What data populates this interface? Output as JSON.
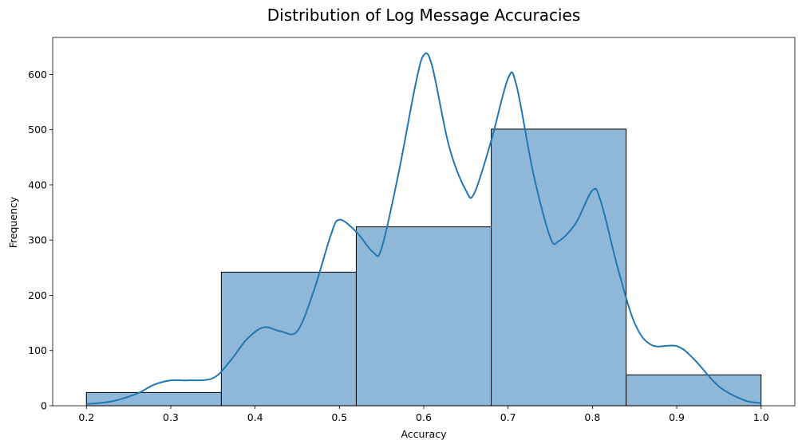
{
  "chart_data": {
    "type": "bar",
    "title": "Distribution of Log Message Accuracies",
    "xlabel": "Accuracy",
    "ylabel": "Frequency",
    "xlim": [
      0.16,
      1.04
    ],
    "ylim": [
      0,
      667
    ],
    "xticks": [
      "0.2",
      "0.3",
      "0.4",
      "0.5",
      "0.6",
      "0.7",
      "0.8",
      "0.9",
      "1.0"
    ],
    "xtick_values": [
      0.2,
      0.3,
      0.4,
      0.5,
      0.6,
      0.7,
      0.8,
      0.9,
      1.0
    ],
    "yticks": [
      "0",
      "100",
      "200",
      "300",
      "400",
      "500",
      "600"
    ],
    "ytick_values": [
      0,
      100,
      200,
      300,
      400,
      500,
      600
    ],
    "bins": [
      {
        "x0": 0.2,
        "x1": 0.36,
        "count": 24
      },
      {
        "x0": 0.36,
        "x1": 0.52,
        "count": 242
      },
      {
        "x0": 0.52,
        "x1": 0.68,
        "count": 324
      },
      {
        "x0": 0.68,
        "x1": 0.84,
        "count": 501
      },
      {
        "x0": 0.84,
        "x1": 1.0,
        "count": 56
      }
    ],
    "kde": {
      "x": [
        0.2,
        0.23,
        0.26,
        0.28,
        0.3,
        0.32,
        0.35,
        0.37,
        0.39,
        0.41,
        0.43,
        0.45,
        0.47,
        0.49,
        0.5,
        0.52,
        0.54,
        0.55,
        0.57,
        0.59,
        0.6,
        0.61,
        0.63,
        0.65,
        0.66,
        0.68,
        0.7,
        0.71,
        0.73,
        0.75,
        0.76,
        0.78,
        0.8,
        0.81,
        0.83,
        0.85,
        0.87,
        0.9,
        0.92,
        0.95,
        0.98,
        1.0
      ],
      "y": [
        3,
        8,
        22,
        38,
        46,
        46,
        50,
        80,
        120,
        142,
        135,
        135,
        210,
        310,
        337,
        315,
        278,
        285,
        420,
        580,
        635,
        615,
        470,
        390,
        385,
        480,
        593,
        580,
        420,
        305,
        298,
        330,
        390,
        370,
        250,
        150,
        110,
        108,
        85,
        35,
        10,
        5
      ]
    },
    "colors": {
      "bar_fill": "#8fb8d8",
      "bar_edge": "#000000",
      "kde_line": "#1f77b4"
    }
  }
}
